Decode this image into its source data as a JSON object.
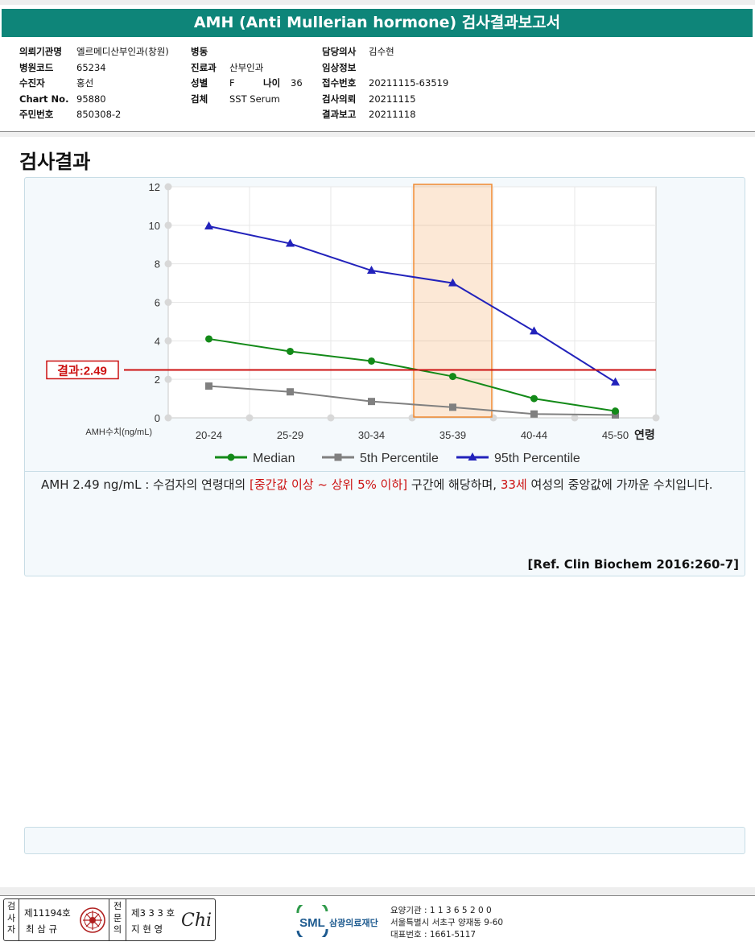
{
  "title": "AMH (Anti Mullerian hormone) 검사결과보고서",
  "patient": {
    "col1": [
      {
        "label": "의뢰기관명",
        "value": "엘르메디산부인과(창원)"
      },
      {
        "label": "병원코드",
        "value": "65234"
      },
      {
        "label": "수진자",
        "value": "홍선"
      },
      {
        "label": "Chart No.",
        "value": "95880"
      },
      {
        "label": "주민번호",
        "value": "850308-2"
      }
    ],
    "col2": [
      {
        "label": "병동",
        "value": ""
      },
      {
        "label": "진료과",
        "value": "산부인과"
      },
      {
        "label": "성별",
        "value": "F"
      },
      {
        "label": "검체",
        "value": "SST Serum"
      }
    ],
    "age_label": "나이",
    "age_value": "36",
    "col3": [
      {
        "label": "담당의사",
        "value": "김수현"
      },
      {
        "label": "임상정보",
        "value": ""
      },
      {
        "label": "접수번호",
        "value": "20211115-63519"
      },
      {
        "label": "검사의뢰",
        "value": "20211115"
      },
      {
        "label": "결과보고",
        "value": "20211118"
      }
    ]
  },
  "section_title": "검사결과",
  "chart_data": {
    "type": "line",
    "categories": [
      "20-24",
      "25-29",
      "30-34",
      "35-39",
      "40-44",
      "45-50"
    ],
    "xlabel": "연령",
    "ylabel": "AMH수치(ng/mL)",
    "ylim": [
      0,
      12
    ],
    "yticks": [
      0,
      2,
      4,
      6,
      8,
      10,
      12
    ],
    "grid": true,
    "legend_position": "bottom",
    "series": [
      {
        "name": "Median",
        "values": [
          4.1,
          3.45,
          2.95,
          2.15,
          1.0,
          0.35
        ],
        "color": "#138a18",
        "marker": "circle"
      },
      {
        "name": "5th Percentile",
        "values": [
          1.65,
          1.35,
          0.85,
          0.55,
          0.2,
          0.15
        ],
        "color": "#808080",
        "marker": "square"
      },
      {
        "name": "95th Percentile",
        "values": [
          9.95,
          9.05,
          7.65,
          7.0,
          4.5,
          1.85
        ],
        "color": "#2222bb",
        "marker": "triangle"
      }
    ],
    "result_line": {
      "label": "결과:2.49",
      "value": 2.49,
      "color": "#cc1111"
    },
    "highlight_category": "35-39",
    "highlight_color": "#f08a32"
  },
  "description": {
    "prefix": "AMH  2.49 ng/mL : 수검자의 연령대의 ",
    "range": "[중간값 이상 ~ 상위 5% 이하]",
    "middle": "  구간에 해당하며, ",
    "age": "33세",
    "suffix": " 여성의 중앙값에 가까운 수치입니다."
  },
  "reference": "[Ref. Clin Biochem 2016:260-7]",
  "signature": {
    "label1": "검사자",
    "license1": "제11194호",
    "name1": "최 삼 규",
    "label2": "전문의",
    "license2": "제3 3 3 호",
    "name2": "지 현 영",
    "handwriting": "Chi"
  },
  "lab": {
    "logo_text": "SML",
    "name": "삼광의료재단",
    "code": "요양기관 : 1 1 3 6 5 2 0 0",
    "address": "서울특별시 서초구 양재동 9-60",
    "phone": "대표번호 : 1661-5117"
  }
}
